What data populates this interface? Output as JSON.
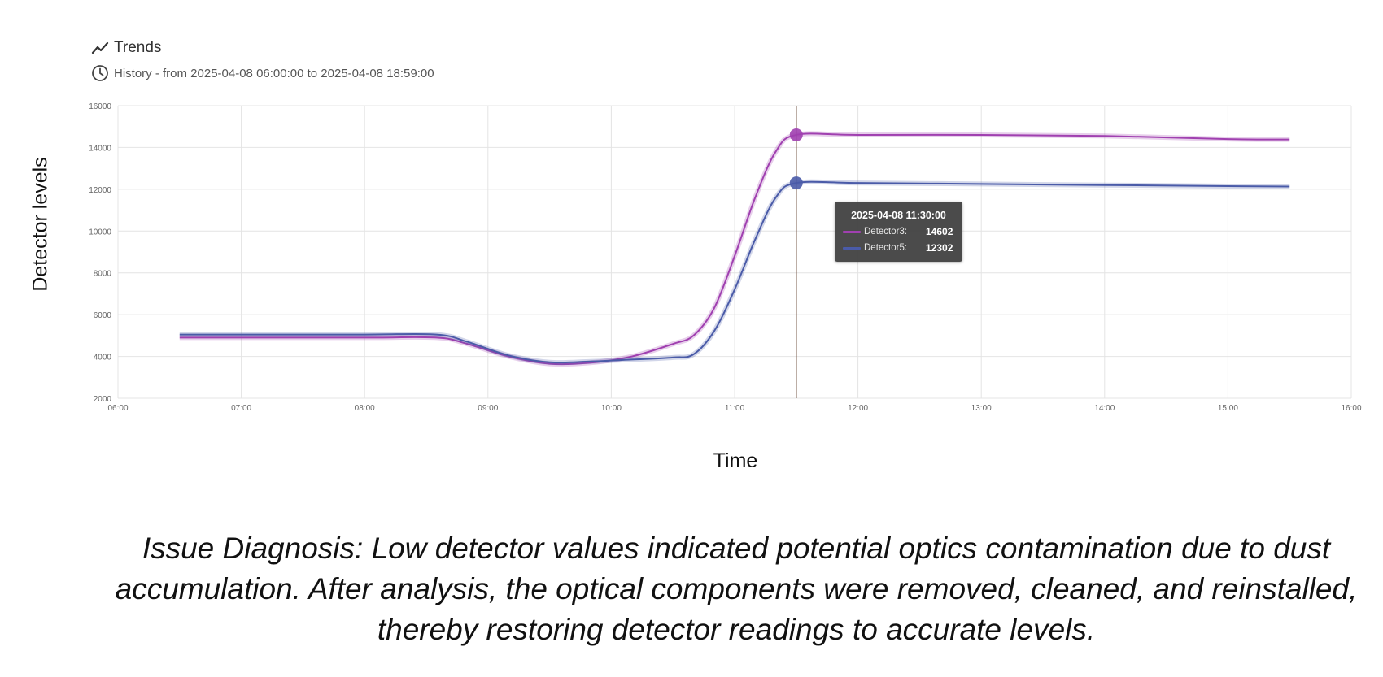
{
  "header": {
    "title": "Trends",
    "subtitle": "History - from 2025-04-08 06:00:00 to 2025-04-08 18:59:00",
    "title_icon": "trend-line-icon",
    "subtitle_icon": "clock-icon"
  },
  "chart_data": {
    "type": "line",
    "xlabel": "Time",
    "ylabel": "Detector levels",
    "ylim": [
      2000,
      16000
    ],
    "xlim": [
      "06:00",
      "16:00"
    ],
    "yticks": [
      "2000",
      "4000",
      "6000",
      "8000",
      "10000",
      "12000",
      "14000",
      "16000"
    ],
    "xticks": [
      "06:00",
      "07:00",
      "08:00",
      "09:00",
      "10:00",
      "11:00",
      "12:00",
      "13:00",
      "14:00",
      "15:00",
      "16:00"
    ],
    "grid": true,
    "series": [
      {
        "name": "Detector3",
        "color": "#a040b0",
        "points": [
          [
            "06:30",
            4900
          ],
          [
            "07:00",
            4900
          ],
          [
            "08:00",
            4900
          ],
          [
            "08:35",
            4900
          ],
          [
            "08:50",
            4600
          ],
          [
            "09:10",
            4000
          ],
          [
            "09:30",
            3650
          ],
          [
            "09:50",
            3700
          ],
          [
            "10:10",
            4000
          ],
          [
            "10:30",
            4600
          ],
          [
            "10:40",
            5000
          ],
          [
            "10:50",
            6300
          ],
          [
            "11:00",
            8800
          ],
          [
            "11:10",
            11600
          ],
          [
            "11:20",
            13800
          ],
          [
            "11:30",
            14602
          ],
          [
            "12:00",
            14602
          ],
          [
            "13:00",
            14600
          ],
          [
            "14:00",
            14550
          ],
          [
            "15:00",
            14400
          ],
          [
            "15:30",
            14380
          ]
        ]
      },
      {
        "name": "Detector5",
        "color": "#4a5ba8",
        "points": [
          [
            "06:30",
            5050
          ],
          [
            "07:00",
            5050
          ],
          [
            "08:00",
            5050
          ],
          [
            "08:35",
            5050
          ],
          [
            "08:50",
            4700
          ],
          [
            "09:10",
            4050
          ],
          [
            "09:30",
            3720
          ],
          [
            "09:50",
            3760
          ],
          [
            "10:10",
            3850
          ],
          [
            "10:30",
            3950
          ],
          [
            "10:40",
            4100
          ],
          [
            "10:50",
            5200
          ],
          [
            "11:00",
            7200
          ],
          [
            "11:10",
            9600
          ],
          [
            "11:20",
            11600
          ],
          [
            "11:30",
            12302
          ],
          [
            "12:00",
            12302
          ],
          [
            "13:00",
            12250
          ],
          [
            "14:00",
            12200
          ],
          [
            "15:00",
            12150
          ],
          [
            "15:30",
            12130
          ]
        ]
      }
    ],
    "cursor": {
      "x": "11:30",
      "tooltip_title": "2025-04-08 11:30:00",
      "entries": [
        {
          "name": "Detector3:",
          "value": "14602",
          "color": "#a040b0"
        },
        {
          "name": "Detector5:",
          "value": "12302",
          "color": "#4a5ba8"
        }
      ]
    }
  },
  "caption": "Issue Diagnosis: Low detector values indicated potential optics contamination due to dust accumulation. After analysis, the optical components were removed, cleaned, and reinstalled, thereby restoring detector readings to accurate levels."
}
